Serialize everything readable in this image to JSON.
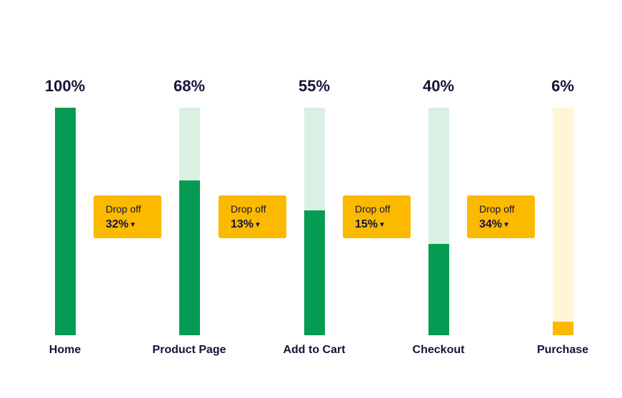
{
  "chart_data": {
    "type": "bar",
    "categories": [
      "Home",
      "Product Page",
      "Add to Cart",
      "Checkout",
      "Purchase"
    ],
    "values": [
      100,
      68,
      55,
      40,
      6
    ],
    "value_labels": [
      "100%",
      "68%",
      "55%",
      "40%",
      "6%"
    ],
    "ylim": [
      0,
      100
    ],
    "grid": false,
    "dropoffs": [
      {
        "title": "Drop off",
        "value": 32,
        "label": "32%"
      },
      {
        "title": "Drop off",
        "value": 13,
        "label": "13%"
      },
      {
        "title": "Drop off",
        "value": 15,
        "label": "15%"
      },
      {
        "title": "Drop off",
        "value": 34,
        "label": "34%"
      }
    ],
    "dropoff_icon": "triangle-down-icon",
    "colors": {
      "fill": "#059b52",
      "track": "#daf0e3",
      "final_fill": "#fbb900",
      "final_track": "#fff5d7",
      "badge": "#fbb900",
      "text": "#14143a"
    }
  }
}
